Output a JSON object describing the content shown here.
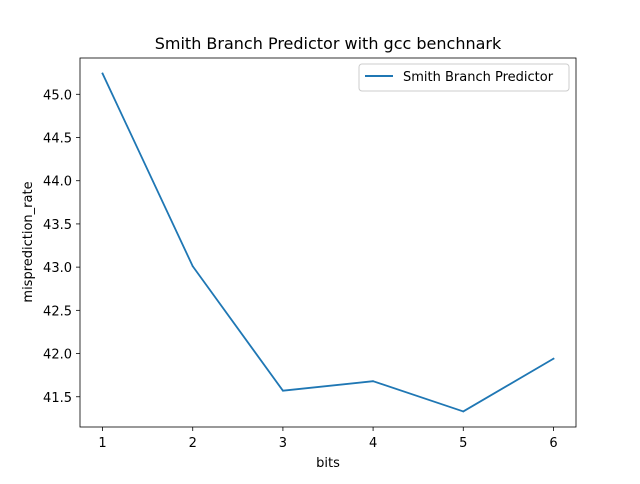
{
  "chart_data": {
    "type": "line",
    "title": "Smith Branch Predictor with gcc benchnark",
    "xlabel": "bits",
    "ylabel": "misprediction_rate",
    "x": [
      1,
      2,
      3,
      4,
      5,
      6
    ],
    "series": [
      {
        "name": "Smith Branch Predictor",
        "values": [
          45.24,
          43.01,
          41.57,
          41.68,
          41.33,
          41.94
        ],
        "color": "#1f77b4"
      }
    ],
    "xlim": [
      0.75,
      6.25
    ],
    "ylim": [
      41.15,
      45.42
    ],
    "xticks": [
      "1",
      "2",
      "3",
      "4",
      "5",
      "6"
    ],
    "yticks": [
      "41.5",
      "42.0",
      "42.5",
      "43.0",
      "43.5",
      "44.0",
      "44.5",
      "45.0"
    ],
    "grid": false,
    "legend": "top-right"
  }
}
